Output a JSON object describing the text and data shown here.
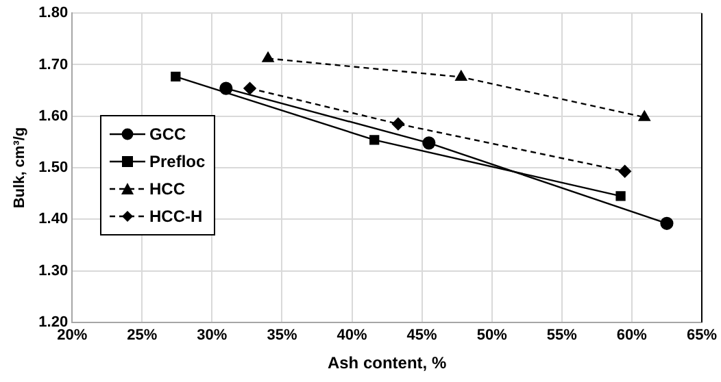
{
  "chart_data": {
    "type": "line",
    "xlabel": "Ash content, %",
    "ylabel": "Bulk, cm³/g",
    "xlim": [
      20,
      65
    ],
    "xticks": [
      {
        "value": 20,
        "label": "20%"
      },
      {
        "value": 25,
        "label": "25%"
      },
      {
        "value": 30,
        "label": "30%"
      },
      {
        "value": 35,
        "label": "35%"
      },
      {
        "value": 40,
        "label": "40%"
      },
      {
        "value": 45,
        "label": "45%"
      },
      {
        "value": 50,
        "label": "50%"
      },
      {
        "value": 55,
        "label": "55%"
      },
      {
        "value": 60,
        "label": "60%"
      },
      {
        "value": 65,
        "label": "65%"
      }
    ],
    "ylim": [
      1.2,
      1.8
    ],
    "yticks": [
      {
        "value": 1.2,
        "label": "1.20"
      },
      {
        "value": 1.3,
        "label": "1.30"
      },
      {
        "value": 1.4,
        "label": "1.40"
      },
      {
        "value": 1.5,
        "label": "1.50"
      },
      {
        "value": 1.6,
        "label": "1.60"
      },
      {
        "value": 1.7,
        "label": "1.70"
      },
      {
        "value": 1.8,
        "label": "1.80"
      }
    ],
    "grid": true,
    "legend": "left",
    "series": [
      {
        "name": "GCC",
        "color": "#000000",
        "marker": "circle",
        "line_style": "solid",
        "x": [
          31.0,
          45.5,
          62.5
        ],
        "values": [
          1.654,
          1.548,
          1.392
        ]
      },
      {
        "name": "Prefloc",
        "color": "#000000",
        "marker": "square",
        "line_style": "solid",
        "x": [
          27.4,
          41.6,
          59.2
        ],
        "values": [
          1.677,
          1.554,
          1.445
        ]
      },
      {
        "name": "HCC",
        "color": "#000000",
        "marker": "triangle",
        "line_style": "dashed",
        "x": [
          34.0,
          47.8,
          60.9
        ],
        "values": [
          1.712,
          1.676,
          1.598
        ]
      },
      {
        "name": "HCC-H",
        "color": "#000000",
        "marker": "diamond",
        "line_style": "dashed",
        "x": [
          32.7,
          43.3,
          59.5
        ],
        "values": [
          1.654,
          1.585,
          1.493
        ]
      }
    ]
  }
}
